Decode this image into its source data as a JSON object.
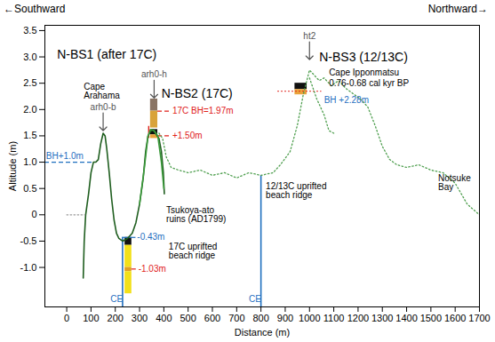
{
  "chart_data": {
    "type": "line",
    "direction_labels": [
      "←Southward",
      "Northward→"
    ],
    "x_label": "Distance (m)",
    "y_label": "Altitude (m)",
    "xlim": [
      -90,
      1700
    ],
    "ylim": [
      -1.75,
      3.6
    ],
    "xticks": [
      0,
      100,
      200,
      300,
      400,
      500,
      600,
      700,
      800,
      900,
      1000,
      1100,
      1200,
      1300,
      1400,
      1500,
      1600,
      1700
    ],
    "yticks": [
      {
        "value": -1.0,
        "label": "-1.0"
      },
      -0.5,
      0,
      0.5,
      {
        "value": 1.0,
        "label": "1.0"
      },
      1.5,
      {
        "value": 2.0,
        "label": "2.0"
      },
      2.5,
      {
        "value": 3.0,
        "label": "3.0"
      },
      3.5
    ],
    "grid": false,
    "series": [
      {
        "color": "#1f5e1f",
        "line_style": "solid",
        "x": [
          68,
          72,
          78,
          90,
          100,
          110,
          120,
          130,
          140,
          150,
          158,
          165,
          175,
          185,
          195,
          205,
          215,
          230,
          250,
          270,
          285,
          300,
          315,
          325,
          335,
          345,
          355,
          365,
          380,
          390,
          398,
          402
        ],
        "values": [
          -1.2,
          -0.5,
          0,
          0.4,
          0.8,
          1.0,
          1.0,
          1.05,
          1.35,
          1.55,
          1.5,
          1.25,
          0.8,
          0.3,
          -0.1,
          -0.35,
          -0.45,
          -0.5,
          -0.45,
          -0.35,
          -0.15,
          0.2,
          0.7,
          1.2,
          1.5,
          1.58,
          1.62,
          1.55,
          1.45,
          1.2,
          0.8,
          0.4
        ]
      },
      {
        "color": "#3c9a3c",
        "line_style": "solid",
        "x": [
          300,
          320,
          335,
          345,
          360,
          375,
          390,
          400
        ],
        "values": [
          0.2,
          0.9,
          1.5,
          1.62,
          1.6,
          1.5,
          1.0,
          0.5
        ]
      },
      {
        "color": "#9a9a9a",
        "line_style": "dotted",
        "x": [
          0,
          40,
          75
        ],
        "values": [
          0,
          0,
          0
        ]
      },
      {
        "color": "#4f9f4f",
        "line_style": "dotted",
        "x": [
          380,
          395,
          410,
          430,
          460,
          500,
          550,
          600,
          650,
          700,
          750,
          800,
          850,
          880,
          920,
          950,
          975,
          1000,
          1020,
          1040,
          1060,
          1090,
          1120,
          1150,
          1180,
          1210,
          1240,
          1270,
          1300,
          1330,
          1360,
          1400,
          1450,
          1500,
          1550,
          1600,
          1650,
          1700
        ],
        "values": [
          1.55,
          1.45,
          1.1,
          0.9,
          0.85,
          0.8,
          0.85,
          0.75,
          0.8,
          0.7,
          0.8,
          0.75,
          0.8,
          0.95,
          1.2,
          1.7,
          2.3,
          2.75,
          2.65,
          2.55,
          2.6,
          2.45,
          2.55,
          2.4,
          2.3,
          2.2,
          2.05,
          1.7,
          1.3,
          1.05,
          0.95,
          0.9,
          0.95,
          0.85,
          0.8,
          0.6,
          0.2,
          0.0
        ]
      },
      {
        "color": "#4f9f4f",
        "line_style": "dotted",
        "x": [
          1000,
          1030,
          1060,
          1080,
          1100
        ],
        "values": [
          2.6,
          2.2,
          1.9,
          1.6,
          1.55
        ]
      }
    ],
    "columns": [
      {
        "x": [
          240,
          268
        ],
        "layers": [
          {
            "top": -0.43,
            "bottom": -0.58,
            "color": "#111111"
          },
          {
            "top": -0.58,
            "bottom": -1.0,
            "color": "#f2e01a"
          },
          {
            "top": -1.0,
            "bottom": -1.08,
            "color": "#e0a020"
          },
          {
            "top": -1.08,
            "bottom": -1.5,
            "color": "#f2e01a"
          }
        ]
      },
      {
        "x": [
          345,
          375
        ],
        "layers": [
          {
            "top": 2.2,
            "bottom": 1.97,
            "color": "#8a7565"
          },
          {
            "top": 1.97,
            "bottom": 1.65,
            "color": "#d9a33a"
          }
        ]
      },
      {
        "x": [
          345,
          375
        ],
        "layers": [
          {
            "top": 1.62,
            "bottom": 1.52,
            "color": "#111111"
          },
          {
            "top": 1.52,
            "bottom": 1.45,
            "color": "#e9a23b"
          }
        ]
      },
      {
        "x": [
          337,
          342
        ],
        "layers": [
          {
            "top": 1.68,
            "bottom": 1.45,
            "color": "#e0201a"
          }
        ]
      },
      {
        "x": [
          940,
          990
        ],
        "layers": [
          {
            "top": 2.5,
            "bottom": 2.38,
            "color": "#111111"
          },
          {
            "top": 2.38,
            "bottom": 2.28,
            "color": "#e9a23b"
          }
        ]
      }
    ],
    "levels": [
      {
        "y": 1.0,
        "x": [
          -90,
          115
        ],
        "color": "#1f6fbf",
        "line_style": "dashed"
      },
      {
        "y": -0.43,
        "x": [
          230,
          285
        ],
        "color": "#1f6fbf",
        "line_style": "solid"
      },
      {
        "y": -1.03,
        "x": [
          268,
          292
        ],
        "color": "#e0201a",
        "line_style": "dashed"
      },
      {
        "y": 1.97,
        "x": [
          375,
          432
        ],
        "color": "#e0201a",
        "line_style": "dashed"
      },
      {
        "y": 1.5,
        "x": [
          375,
          432
        ],
        "color": "#e0201a",
        "line_style": "dashed"
      },
      {
        "y": 2.35,
        "x": [
          870,
          1050
        ],
        "color": "#e0201a",
        "line_style": "dotted"
      }
    ],
    "ce_lines": [
      {
        "x": 230,
        "top": -0.43,
        "color": "#1f6fbf"
      },
      {
        "x": 800,
        "top": 0.75,
        "color": "#1f6fbf"
      }
    ],
    "headings": [
      {
        "text": "N-BS1 (after 17C)",
        "x": -40,
        "y": 3.05
      },
      {
        "text": "N-BS2 (17C)",
        "x": 390,
        "y": 2.3
      },
      {
        "text": "N-BS3 (12/13C)",
        "x": 1040,
        "y": 3.0
      }
    ],
    "pointers": [
      {
        "text": "arh0-b",
        "x": 150,
        "y": 1.6
      },
      {
        "text": "arh0-h",
        "x": 360,
        "y": 2.22
      },
      {
        "text": "ht2",
        "x": 1000,
        "y": 2.95
      }
    ],
    "annotations": [
      {
        "text": "Cape\nArahama",
        "x": 70,
        "y": 2.35,
        "color": "#000000"
      },
      {
        "text": "Cape Ipponmatsu",
        "x": 1080,
        "y": 2.7,
        "color": "#000000"
      },
      {
        "text": "0.76-0.68 cal kyr BP",
        "x": 1080,
        "y": 2.5,
        "color": "#000000"
      },
      {
        "text": "BH +2.28m",
        "x": 1060,
        "y": 2.17,
        "color": "#1f6fbf"
      },
      {
        "text": "BH+1.0m",
        "x": -85,
        "y": 1.12,
        "color": "#1f6fbf"
      },
      {
        "text": "17C BH=1.97m",
        "x": 435,
        "y": 1.97,
        "color": "#e0201a"
      },
      {
        "text": "+1.50m",
        "x": 435,
        "y": 1.5,
        "color": "#e0201a"
      },
      {
        "text": "-0.43m",
        "x": 290,
        "y": -0.43,
        "color": "#1f6fbf"
      },
      {
        "text": "-1.03m",
        "x": 295,
        "y": -1.03,
        "color": "#e0201a"
      },
      {
        "text": "Tsukoya-ato\nruins (AD1799)",
        "x": 410,
        "y": 0.0,
        "color": "#000000"
      },
      {
        "text": "17C uprifted\nbeach ridge",
        "x": 420,
        "y": -0.7,
        "color": "#000000"
      },
      {
        "text": "12/13C uprifted\nbeach ridge",
        "x": 820,
        "y": 0.45,
        "color": "#000000"
      },
      {
        "text": "Notsuke\nBay",
        "x": 1530,
        "y": 0.6,
        "color": "#000000"
      },
      {
        "text": "CE",
        "x": 180,
        "y": -1.6,
        "color": "#1f6fbf"
      },
      {
        "text": "CE",
        "x": 750,
        "y": -1.6,
        "color": "#1f6fbf"
      }
    ]
  }
}
